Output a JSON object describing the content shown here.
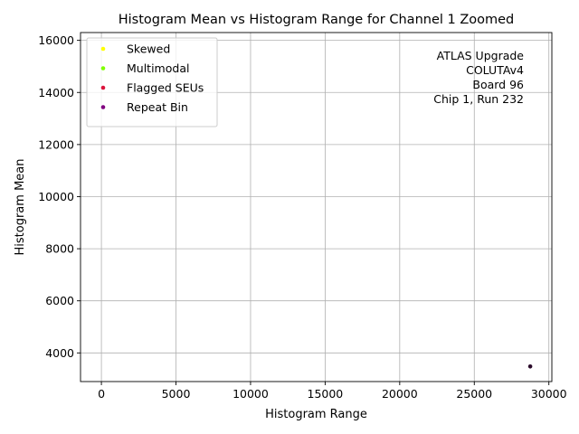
{
  "chart_data": {
    "type": "scatter",
    "title": "Histogram Mean vs Histogram Range for Channel 1 Zoomed",
    "xlabel": "Histogram Range",
    "ylabel": "Histogram Mean",
    "xlim": [
      -1400,
      30200
    ],
    "ylim": [
      2900,
      16300
    ],
    "xticks": [
      0,
      5000,
      10000,
      15000,
      20000,
      25000,
      30000
    ],
    "yticks": [
      4000,
      6000,
      8000,
      10000,
      12000,
      14000,
      16000
    ],
    "grid": true,
    "legend_position": "upper-left",
    "series": [
      {
        "name": "Skewed",
        "color": "#ffff00",
        "points": []
      },
      {
        "name": "Multimodal",
        "color": "#7fff00",
        "points": []
      },
      {
        "name": "Flagged SEUs",
        "color": "#dc143c",
        "points": []
      },
      {
        "name": "Repeat Bin",
        "color": "#800080",
        "points": []
      }
    ],
    "main_points": {
      "color": "#2a0a2a",
      "points": [
        {
          "x": 28750,
          "y": 3480
        }
      ]
    },
    "annotation": [
      "ATLAS Upgrade",
      "COLUTAv4",
      "Board 96",
      "Chip 1, Run 232"
    ]
  }
}
